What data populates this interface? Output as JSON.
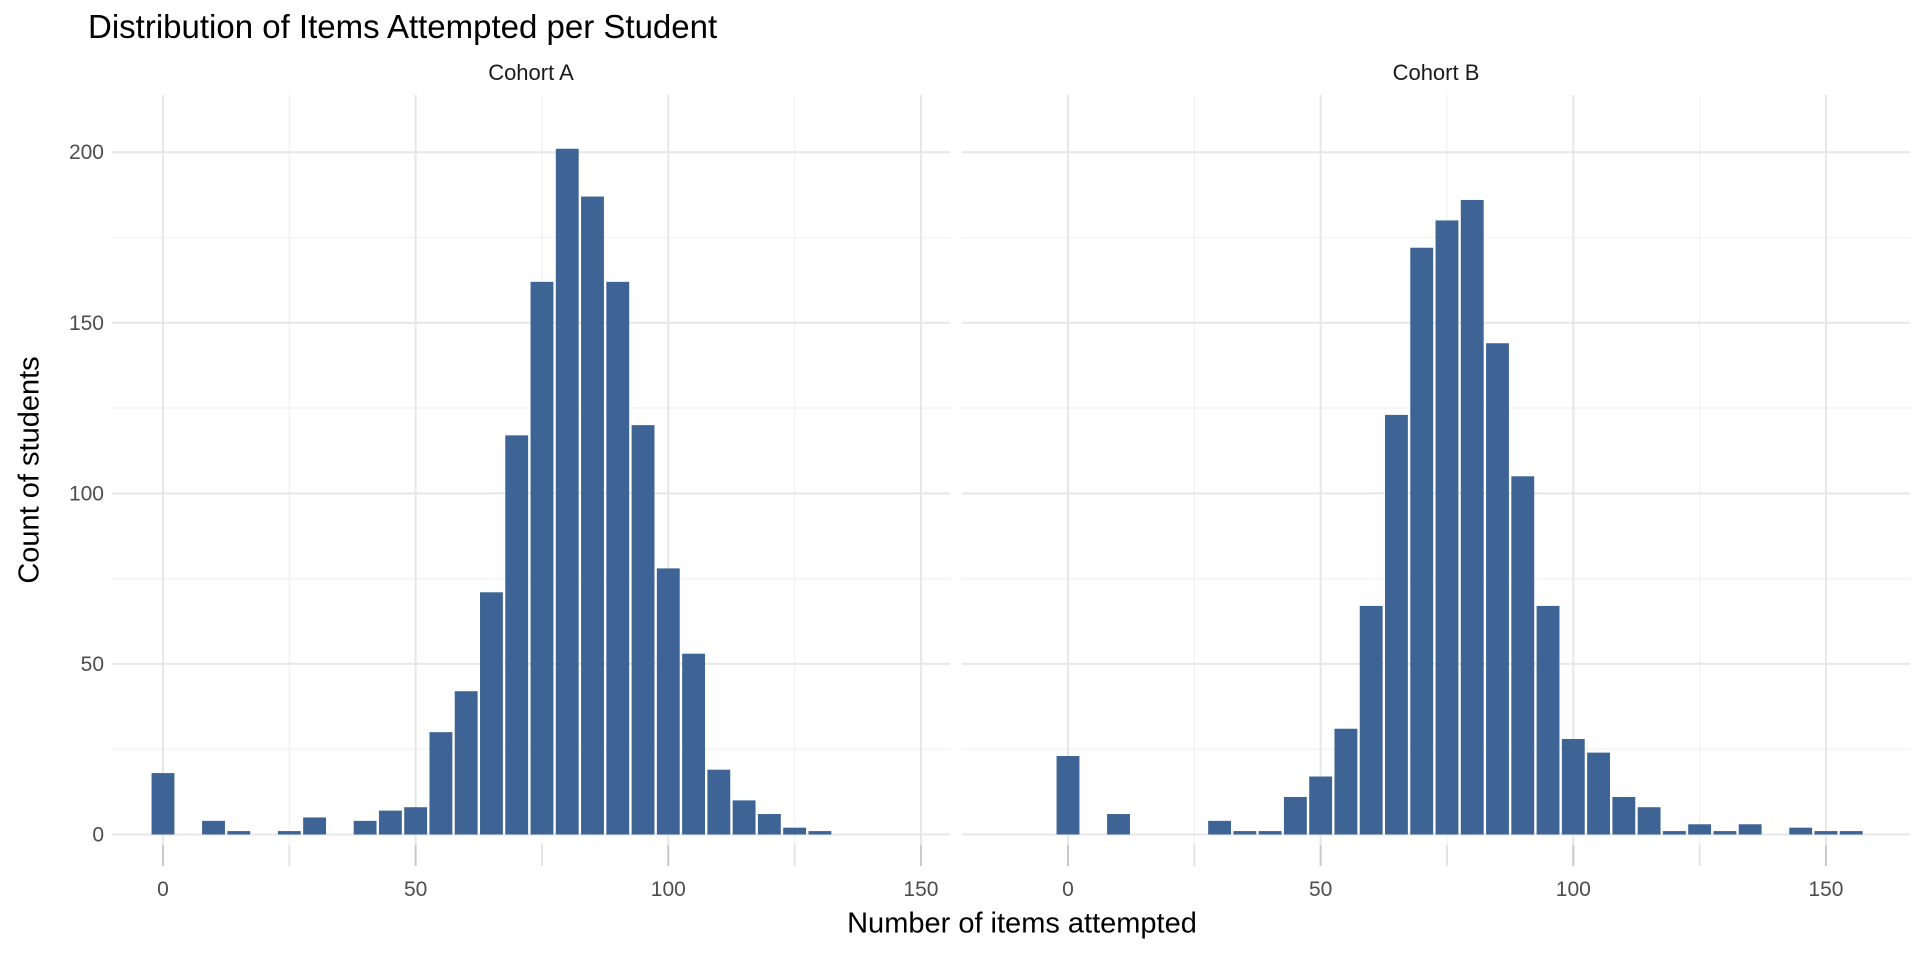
{
  "chart_data": {
    "type": "bar",
    "subtype": "faceted-histogram",
    "title": "Distribution of Items Attempted per Student",
    "xlabel": "Number of items attempted",
    "ylabel": "Count of students",
    "bin_width": 5,
    "bar_color": "#3E6495",
    "grid_major_color": "#E7E7E7",
    "grid_minor_color": "#F2F2F2",
    "tick_major_color": "#C9C9C9",
    "tick_minor_color": "#E4E4E4",
    "axis_text_color": "#4D4D4D",
    "x_ticks": [
      0,
      50,
      100,
      150
    ],
    "x_minor_ticks": [
      25,
      75,
      125
    ],
    "y_ticks": [
      0,
      50,
      100,
      150,
      200
    ],
    "y_minor_ticks": [
      25,
      75,
      125,
      175
    ],
    "xlim": [
      -12,
      166
    ],
    "ylim": [
      0,
      217
    ],
    "legend": "none",
    "facets": [
      {
        "label": "Cohort A",
        "bins": [
          [
            0,
            18
          ],
          [
            10,
            4
          ],
          [
            15,
            1
          ],
          [
            25,
            1
          ],
          [
            30,
            5
          ],
          [
            40,
            4
          ],
          [
            45,
            7
          ],
          [
            50,
            8
          ],
          [
            55,
            30
          ],
          [
            60,
            42
          ],
          [
            65,
            71
          ],
          [
            70,
            117
          ],
          [
            75,
            162
          ],
          [
            80,
            201
          ],
          [
            85,
            187
          ],
          [
            90,
            162
          ],
          [
            95,
            120
          ],
          [
            100,
            78
          ],
          [
            105,
            53
          ],
          [
            110,
            19
          ],
          [
            115,
            10
          ],
          [
            120,
            6
          ],
          [
            125,
            2
          ],
          [
            130,
            1
          ]
        ]
      },
      {
        "label": "Cohort B",
        "bins": [
          [
            0,
            23
          ],
          [
            10,
            6
          ],
          [
            30,
            4
          ],
          [
            35,
            1
          ],
          [
            40,
            1
          ],
          [
            45,
            11
          ],
          [
            50,
            17
          ],
          [
            55,
            31
          ],
          [
            60,
            67
          ],
          [
            65,
            123
          ],
          [
            70,
            172
          ],
          [
            75,
            180
          ],
          [
            80,
            186
          ],
          [
            85,
            144
          ],
          [
            90,
            105
          ],
          [
            95,
            67
          ],
          [
            100,
            28
          ],
          [
            105,
            24
          ],
          [
            110,
            11
          ],
          [
            115,
            8
          ],
          [
            120,
            1
          ],
          [
            125,
            3
          ],
          [
            130,
            1
          ],
          [
            135,
            3
          ],
          [
            145,
            2
          ],
          [
            150,
            1
          ],
          [
            155,
            1
          ]
        ]
      }
    ]
  }
}
